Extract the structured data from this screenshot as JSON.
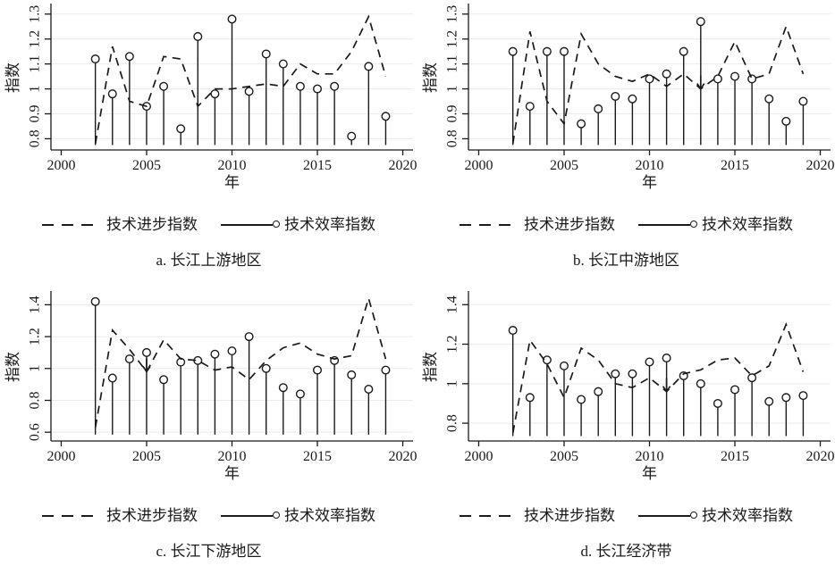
{
  "figure": {
    "xlabel": "年",
    "ylabel": "指数",
    "legend": {
      "progress": "技术进步指数",
      "efficiency": "技术效率指数"
    }
  },
  "chart_data": [
    {
      "type": "line+stem",
      "caption": "a. 长江上游地区",
      "xlabel": "年",
      "ylabel": "指数",
      "x": [
        2002,
        2003,
        2004,
        2005,
        2006,
        2007,
        2008,
        2009,
        2010,
        2011,
        2012,
        2013,
        2014,
        2015,
        2016,
        2017,
        2018,
        2019
      ],
      "xlim": [
        1999.4,
        2020.6
      ],
      "xtick_values": [
        2000,
        2005,
        2010,
        2015,
        2020
      ],
      "xtick_labels": [
        "2000",
        "2005",
        "2010",
        "2015",
        "2020"
      ],
      "ylim": [
        0.755,
        1.335
      ],
      "ytick_values": [
        0.8,
        0.9,
        1.0,
        1.1,
        1.2,
        1.3
      ],
      "ytick_labels": [
        "0.8",
        "0.9",
        "1",
        "1.1",
        "1.2",
        "1.3"
      ],
      "stem_base": 0.775,
      "grid": "horizontal",
      "legend_position": "bottom",
      "series": [
        {
          "name": "技术进步指数",
          "style": "dashed-line",
          "values": [
            0.78,
            1.17,
            0.95,
            0.93,
            1.13,
            1.12,
            0.93,
            1.0,
            1.0,
            1.01,
            1.02,
            1.01,
            1.1,
            1.06,
            1.06,
            1.15,
            1.29,
            1.05
          ]
        },
        {
          "name": "技术效率指数",
          "style": "stem-open-circle",
          "values": [
            1.12,
            0.98,
            1.13,
            0.93,
            1.01,
            0.84,
            1.21,
            0.98,
            1.28,
            0.99,
            1.14,
            1.1,
            1.01,
            1.0,
            1.01,
            0.81,
            1.09,
            0.89
          ]
        }
      ],
      "arrow_years": []
    },
    {
      "type": "line+stem",
      "caption": "b. 长江中游地区",
      "xlabel": "年",
      "ylabel": "指数",
      "x": [
        2002,
        2003,
        2004,
        2005,
        2006,
        2007,
        2008,
        2009,
        2010,
        2011,
        2012,
        2013,
        2014,
        2015,
        2016,
        2017,
        2018,
        2019
      ],
      "xlim": [
        1999.4,
        2020.6
      ],
      "xtick_values": [
        2000,
        2005,
        2010,
        2015,
        2020
      ],
      "xtick_labels": [
        "2000",
        "2005",
        "2010",
        "2015",
        "2020"
      ],
      "ylim": [
        0.755,
        1.335
      ],
      "ytick_values": [
        0.8,
        0.9,
        1.0,
        1.1,
        1.2,
        1.3
      ],
      "ytick_labels": [
        "0.8",
        "0.9",
        "1",
        "1.1",
        "1.2",
        "1.3"
      ],
      "stem_base": 0.775,
      "grid": "horizontal",
      "legend_position": "bottom",
      "series": [
        {
          "name": "技术进步指数",
          "style": "dashed-line",
          "values": [
            0.78,
            1.23,
            0.95,
            0.86,
            1.22,
            1.1,
            1.05,
            1.03,
            1.06,
            1.01,
            1.06,
            1.0,
            1.05,
            1.19,
            1.04,
            1.06,
            1.25,
            1.06
          ]
        },
        {
          "name": "技术效率指数",
          "style": "stem-open-circle",
          "values": [
            1.15,
            0.93,
            1.15,
            1.15,
            0.86,
            0.92,
            0.97,
            0.96,
            1.04,
            1.06,
            1.15,
            1.27,
            1.04,
            1.05,
            1.04,
            0.96,
            0.87,
            0.95
          ]
        }
      ],
      "arrow_years": [
        2013
      ]
    },
    {
      "type": "line+stem",
      "caption": "c. 长江下游地区",
      "xlabel": "年",
      "ylabel": "指数",
      "x": [
        2002,
        2003,
        2004,
        2005,
        2006,
        2007,
        2008,
        2009,
        2010,
        2011,
        2012,
        2013,
        2014,
        2015,
        2016,
        2017,
        2018,
        2019
      ],
      "xlim": [
        1999.4,
        2020.6
      ],
      "xtick_values": [
        2000,
        2005,
        2010,
        2015,
        2020
      ],
      "xtick_labels": [
        "2000",
        "2005",
        "2010",
        "2015",
        "2020"
      ],
      "ylim": [
        0.545,
        1.475
      ],
      "ytick_values": [
        0.6,
        0.8,
        1.0,
        1.2,
        1.4
      ],
      "ytick_labels": [
        "0.6",
        "0.8",
        "1",
        "1.2",
        "1.4"
      ],
      "stem_base": 0.585,
      "grid": "horizontal",
      "legend_position": "bottom",
      "series": [
        {
          "name": "技术进步指数",
          "style": "dashed-line",
          "values": [
            0.63,
            1.24,
            1.12,
            0.98,
            1.18,
            1.06,
            1.05,
            0.99,
            1.01,
            0.93,
            1.05,
            1.13,
            1.16,
            1.09,
            1.06,
            1.08,
            1.44,
            1.06
          ]
        },
        {
          "name": "技术效率指数",
          "style": "stem-open-circle",
          "values": [
            1.42,
            0.94,
            1.06,
            1.1,
            0.93,
            1.04,
            1.05,
            1.09,
            1.11,
            1.2,
            1.0,
            0.88,
            0.84,
            0.99,
            1.05,
            0.96,
            0.87,
            0.99
          ]
        }
      ],
      "arrow_years": [
        2005
      ]
    },
    {
      "type": "line+stem",
      "caption": "d. 长江经济带",
      "xlabel": "年",
      "ylabel": "指数",
      "x": [
        2002,
        2003,
        2004,
        2005,
        2006,
        2007,
        2008,
        2009,
        2010,
        2011,
        2012,
        2013,
        2014,
        2015,
        2016,
        2017,
        2018,
        2019
      ],
      "xlim": [
        1999.4,
        2020.6
      ],
      "xtick_values": [
        2000,
        2005,
        2010,
        2015,
        2020
      ],
      "xtick_labels": [
        "2000",
        "2005",
        "2010",
        "2015",
        "2020"
      ],
      "ylim": [
        0.71,
        1.46
      ],
      "ytick_values": [
        0.8,
        1.0,
        1.2,
        1.4
      ],
      "ytick_labels": [
        "0.8",
        "1",
        "1.2",
        "1.4"
      ],
      "stem_base": 0.735,
      "grid": "horizontal",
      "legend_position": "bottom",
      "series": [
        {
          "name": "技术进步指数",
          "style": "dashed-line",
          "values": [
            0.75,
            1.22,
            1.1,
            0.93,
            1.18,
            1.12,
            1.0,
            0.98,
            1.03,
            0.96,
            1.05,
            1.07,
            1.12,
            1.13,
            1.04,
            1.09,
            1.3,
            1.06
          ]
        },
        {
          "name": "技术效率指数",
          "style": "stem-open-circle",
          "values": [
            1.27,
            0.93,
            1.12,
            1.09,
            0.92,
            0.96,
            1.05,
            1.05,
            1.11,
            1.13,
            1.04,
            1.0,
            0.9,
            0.97,
            1.03,
            0.91,
            0.93,
            0.94
          ]
        }
      ],
      "arrow_years": [
        2011
      ]
    }
  ],
  "colors": {
    "line": "#1a1a1a",
    "grid": "#ececec",
    "background": "#ffffff"
  }
}
